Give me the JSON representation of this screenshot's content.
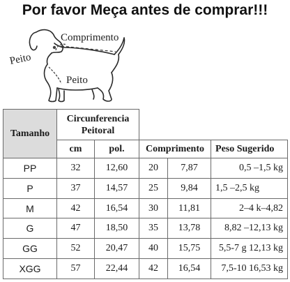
{
  "title": "Por favor Meça antes de comprar!!!",
  "diagram": {
    "label_length": "Comprimento",
    "label_neck": "Peito",
    "label_chest": "Peito"
  },
  "table": {
    "header_size": "Tamanho",
    "header_girth": "Circunferencia Peitoral",
    "header_cm": "cm",
    "header_pol": "pol.",
    "header_length": "Comprimento",
    "header_weight": "Peso Sugerido",
    "rows": [
      {
        "size": "PP",
        "cm": "32",
        "pol": "12,60",
        "len_cm": "20",
        "len_pol": "7,87",
        "weight": "0,5 –1,5 kg"
      },
      {
        "size": "P",
        "cm": "37",
        "pol": "14,57",
        "len_cm": "25",
        "len_pol": "9,84",
        "weight": "1,5 –2,5 kg"
      },
      {
        "size": "M",
        "cm": "42",
        "pol": "16,54",
        "len_cm": "30",
        "len_pol": "11,81",
        "weight": "2–4 k–4,82"
      },
      {
        "size": "G",
        "cm": "47",
        "pol": "18,50",
        "len_cm": "35",
        "len_pol": "13,78",
        "weight": "8,82 –12,13 kg"
      },
      {
        "size": "GG",
        "cm": "52",
        "pol": "20,47",
        "len_cm": "40",
        "len_pol": "15,75",
        "weight": "5,5-7 g 12,13 kg"
      },
      {
        "size": "XGG",
        "cm": "57",
        "pol": "22,44",
        "len_cm": "42",
        "len_pol": "16,54",
        "weight": "7,5-10  16,53 kg"
      }
    ]
  }
}
